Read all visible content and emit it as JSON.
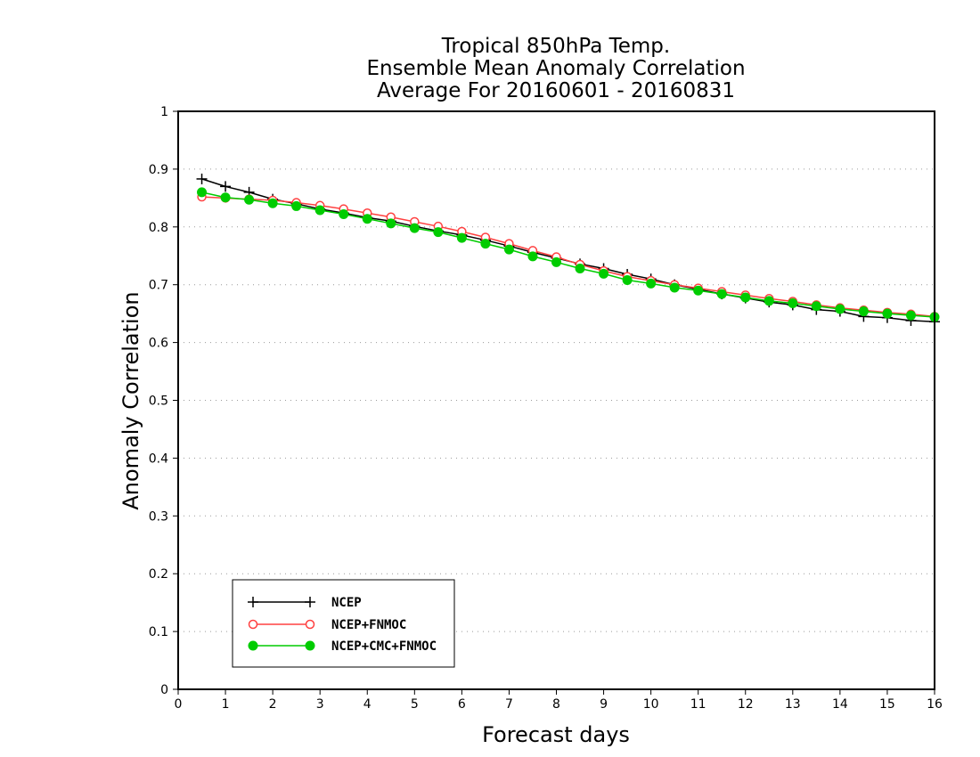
{
  "chart_data": {
    "type": "line",
    "title": [
      "Tropical 850hPa Temp.",
      "Ensemble Mean Anomaly Correlation",
      "Average For 20160601 - 20160831"
    ],
    "xlabel": "Forecast days",
    "ylabel": "Anomaly Correlation",
    "xlim": [
      0,
      16
    ],
    "ylim": [
      0,
      1
    ],
    "xticks": [
      "0",
      "1",
      "2",
      "3",
      "4",
      "5",
      "6",
      "7",
      "8",
      "9",
      "10",
      "11",
      "12",
      "13",
      "14",
      "15",
      "16"
    ],
    "yticks": [
      "0",
      "0.1",
      "0.2",
      "0.3",
      "0.4",
      "0.5",
      "0.6",
      "0.7",
      "0.8",
      "0.9",
      "1"
    ],
    "grid": "horizontal dotted",
    "legend_position": "bottom-left",
    "x": [
      0.5,
      1,
      1.5,
      2,
      2.5,
      3,
      3.5,
      4,
      4.5,
      5,
      5.5,
      6,
      6.5,
      7,
      7.5,
      8,
      8.5,
      9,
      9.5,
      10,
      10.5,
      11,
      11.5,
      12,
      12.5,
      13,
      13.5,
      14,
      14.5,
      15,
      15.5,
      16
    ],
    "series": [
      {
        "name": "NCEP",
        "color": "#000000",
        "marker": "plus",
        "values": [
          0.883,
          0.87,
          0.86,
          0.848,
          0.84,
          0.831,
          0.824,
          0.816,
          0.81,
          0.801,
          0.793,
          0.786,
          0.777,
          0.767,
          0.756,
          0.746,
          0.736,
          0.728,
          0.718,
          0.71,
          0.7,
          0.692,
          0.684,
          0.677,
          0.67,
          0.665,
          0.657,
          0.654,
          0.645,
          0.643,
          0.638,
          0.636
        ]
      },
      {
        "name": "NCEP+FNMOC",
        "color": "#ff4040",
        "marker": "open-circle",
        "values": [
          0.852,
          0.85,
          0.848,
          0.846,
          0.842,
          0.837,
          0.831,
          0.824,
          0.817,
          0.809,
          0.801,
          0.792,
          0.782,
          0.771,
          0.759,
          0.748,
          0.735,
          0.724,
          0.714,
          0.707,
          0.7,
          0.694,
          0.688,
          0.682,
          0.676,
          0.671,
          0.665,
          0.66,
          0.656,
          0.652,
          0.649,
          0.645
        ]
      },
      {
        "name": "NCEP+CMC+FNMOC",
        "color": "#00cc00",
        "marker": "filled-circle",
        "values": [
          0.86,
          0.851,
          0.847,
          0.841,
          0.836,
          0.829,
          0.822,
          0.814,
          0.806,
          0.798,
          0.791,
          0.781,
          0.771,
          0.761,
          0.749,
          0.739,
          0.728,
          0.719,
          0.708,
          0.702,
          0.695,
          0.69,
          0.684,
          0.678,
          0.672,
          0.668,
          0.663,
          0.658,
          0.654,
          0.65,
          0.647,
          0.644
        ]
      }
    ]
  }
}
